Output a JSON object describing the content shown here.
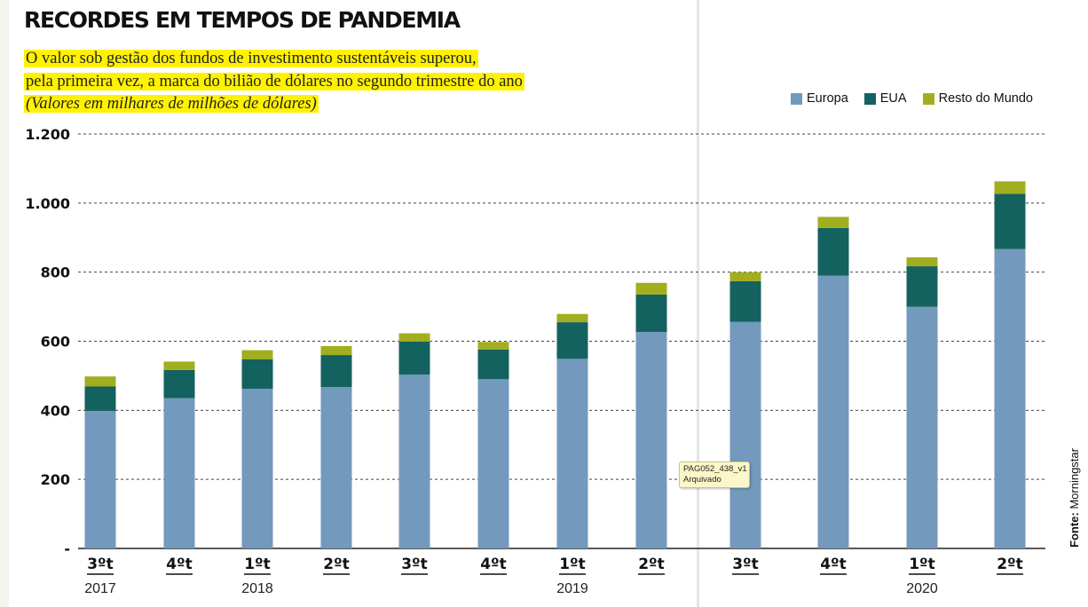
{
  "header": {
    "title": "RECORDES EM TEMPOS DE PANDEMIA",
    "subtitle_line1": "O valor sob gestão dos fundos de investimento sustentáveis superou,",
    "subtitle_line2": "pela primeira vez, a marca do bilião de dólares no segundo trimestre do ano",
    "subtitle_line3": "(Valores em milhares de milhões de dólares)"
  },
  "source": {
    "label": "Fonte:",
    "value": "Morningstar"
  },
  "tooltip": {
    "line1": "PAG052_438_v1",
    "line2": "Arquivado"
  },
  "chart_data": {
    "type": "bar",
    "stacked": true,
    "categories": [
      "3ºt",
      "4ºt",
      "1ºt",
      "2ºt",
      "3ºt",
      "4ºt",
      "1ºt",
      "2ºt",
      "3ºt",
      "4ºt",
      "1ºt",
      "2ºt"
    ],
    "years": [
      {
        "label": "2017",
        "at_category": 0
      },
      {
        "label": "2018",
        "at_category": 2
      },
      {
        "label": "2019",
        "at_category": 6
      },
      {
        "label": "2020",
        "at_category": 10
      }
    ],
    "series": [
      {
        "name": "Europa",
        "color": "#7399bd",
        "values": [
          398,
          435,
          462,
          467,
          503,
          490,
          549,
          627,
          656,
          790,
          700,
          867
        ]
      },
      {
        "name": "EUA",
        "color": "#14625f",
        "values": [
          71,
          82,
          86,
          93,
          96,
          86,
          106,
          108,
          118,
          138,
          117,
          160
        ]
      },
      {
        "name": "Resto do Mundo",
        "color": "#a3ae1e",
        "values": [
          29,
          24,
          26,
          26,
          24,
          22,
          24,
          34,
          26,
          32,
          26,
          36
        ]
      }
    ],
    "yticks": [
      {
        "value": 0,
        "label": "-"
      },
      {
        "value": 200,
        "label": "200"
      },
      {
        "value": 400,
        "label": "400"
      },
      {
        "value": 600,
        "label": "600"
      },
      {
        "value": 800,
        "label": "800"
      },
      {
        "value": 1000,
        "label": "1.000"
      },
      {
        "value": 1200,
        "label": "1.200"
      }
    ],
    "ylim": [
      0,
      1200
    ],
    "grid": "dashed horizontal",
    "legend_position": "top-right"
  }
}
